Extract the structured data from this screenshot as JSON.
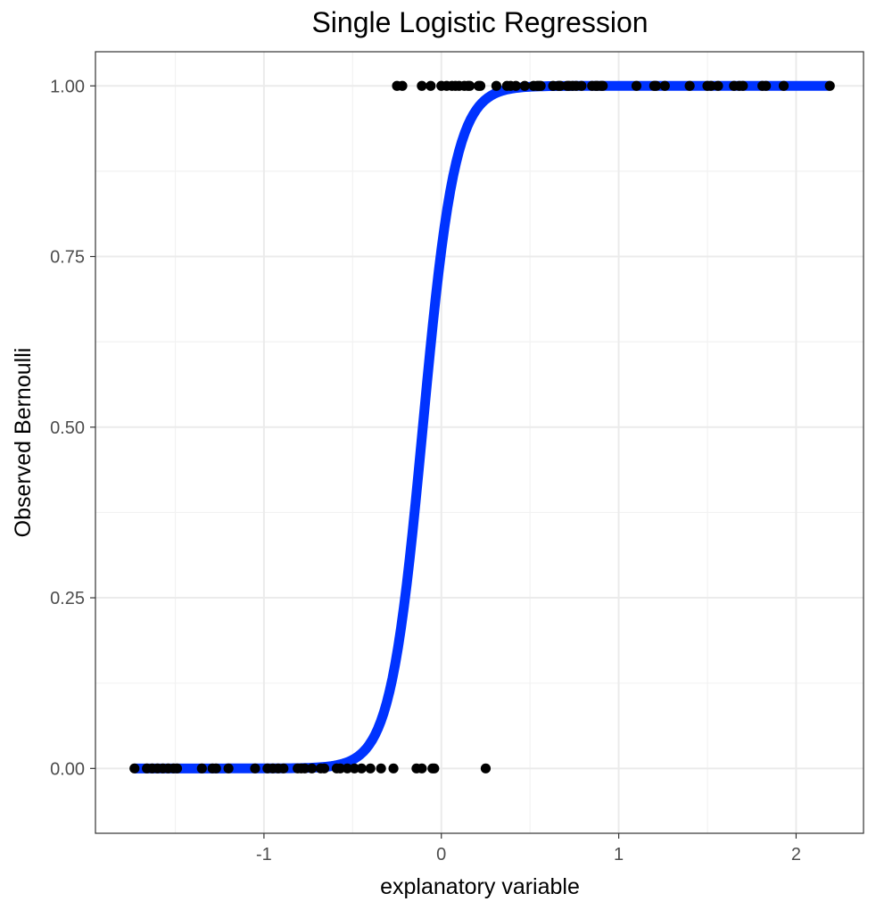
{
  "chart_data": {
    "type": "scatter",
    "title": "Single Logistic Regression",
    "xlabel": "explanatory variable",
    "ylabel": "Observed Bernoulli",
    "xlim": [
      -1.95,
      2.38
    ],
    "ylim": [
      -0.095,
      1.05
    ],
    "x_ticks": [
      -1,
      0,
      1,
      2
    ],
    "x_tick_labels": [
      "-1",
      "0",
      "1",
      "2"
    ],
    "y_ticks": [
      0,
      0.25,
      0.5,
      0.75,
      1
    ],
    "y_tick_labels": [
      "0.00",
      "0.25",
      "0.50",
      "0.75",
      "1.00"
    ],
    "grid": true,
    "legend": "none",
    "colors": {
      "points": "#000000",
      "curve": "#0033ff",
      "grid_major": "#ebebeb",
      "grid_minor": "#f2f2f2",
      "panel_border": "#333333",
      "tick_label": "#4d4d4d"
    },
    "fitted_curve": {
      "model": "logistic",
      "intercept": 1.15,
      "slope": 11.0,
      "x_range": [
        -1.73,
        2.19
      ]
    },
    "series": [
      {
        "values_y": 0,
        "x": [
          -1.73,
          -1.66,
          -1.63,
          -1.6,
          -1.57,
          -1.54,
          -1.51,
          -1.49,
          -1.35,
          -1.29,
          -1.27,
          -1.2,
          -1.05,
          -0.98,
          -0.95,
          -0.92,
          -0.89,
          -0.81,
          -0.79,
          -0.77,
          -0.73,
          -0.68,
          -0.66,
          -0.59,
          -0.57,
          -0.53,
          -0.49,
          -0.45,
          -0.4,
          -0.34,
          -0.27,
          -0.14,
          -0.11,
          -0.05,
          -0.04,
          0.25
        ]
      },
      {
        "values_y": 1,
        "x": [
          -0.25,
          -0.22,
          -0.11,
          -0.06,
          0.0,
          0.03,
          0.06,
          0.08,
          0.1,
          0.13,
          0.15,
          0.16,
          0.21,
          0.22,
          0.31,
          0.37,
          0.39,
          0.42,
          0.47,
          0.52,
          0.54,
          0.55,
          0.56,
          0.63,
          0.66,
          0.67,
          0.71,
          0.72,
          0.74,
          0.76,
          0.79,
          0.85,
          0.87,
          0.88,
          0.9,
          0.91,
          1.1,
          1.2,
          1.21,
          1.26,
          1.4,
          1.5,
          1.52,
          1.56,
          1.65,
          1.68,
          1.7,
          1.81,
          1.83,
          1.93,
          2.19
        ]
      }
    ]
  }
}
